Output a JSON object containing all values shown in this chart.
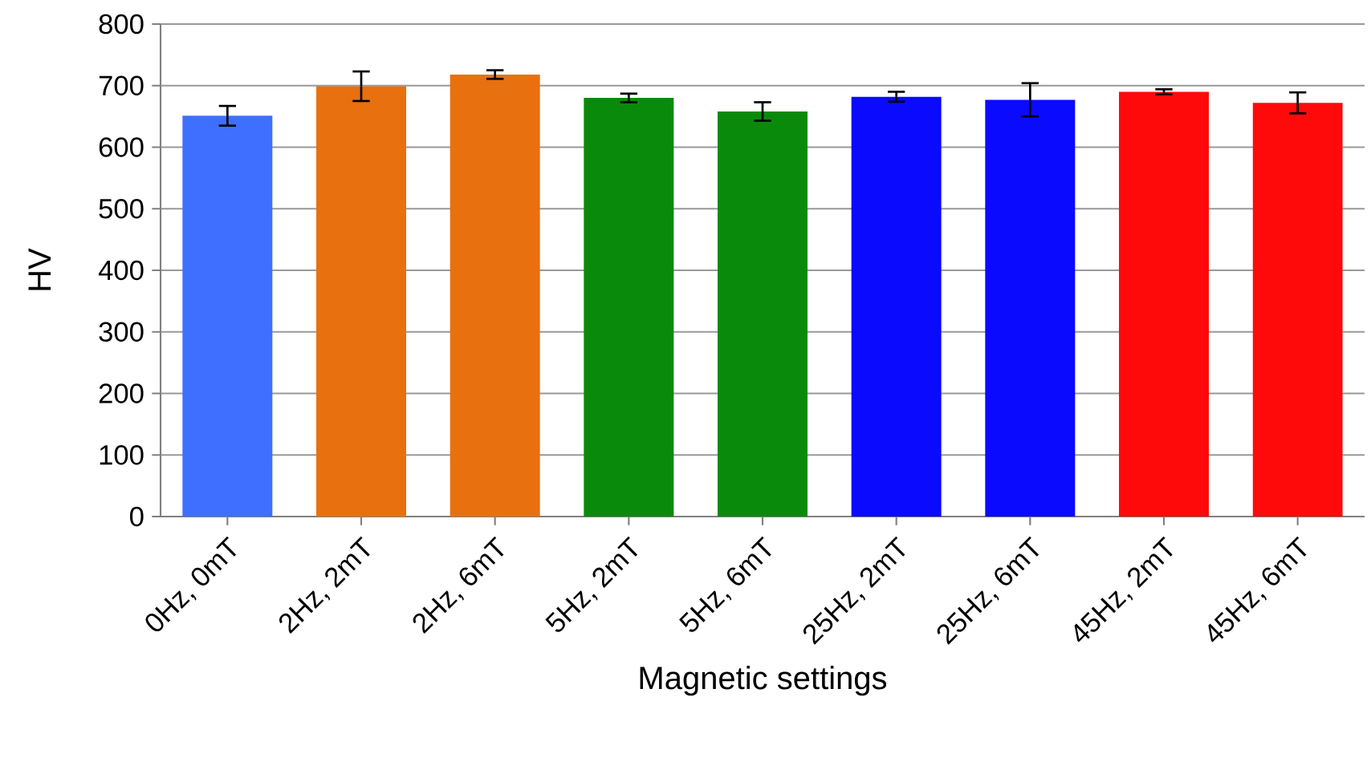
{
  "chart_data": {
    "type": "bar",
    "xlabel": "Magnetic settings",
    "ylabel": "HV",
    "categories": [
      "0Hz, 0mT",
      "2Hz, 2mT",
      "2Hz, 6mT",
      "5Hz, 2mT",
      "5Hz, 6mT",
      "25Hz, 2mT",
      "25Hz, 6mT",
      "45Hz, 2mT",
      "45Hz, 6mT"
    ],
    "values": [
      651,
      699,
      718,
      680,
      658,
      682,
      677,
      690,
      672
    ],
    "errors": [
      16,
      24,
      7,
      7,
      15,
      8,
      27,
      4,
      17
    ],
    "colors": [
      "#3f6fff",
      "#e8700f",
      "#e8700f",
      "#0a8a0a",
      "#0a8a0a",
      "#0a0aff",
      "#0a0aff",
      "#ff0a0a",
      "#ff0a0a"
    ],
    "ylim": [
      0,
      800
    ],
    "yticks": [
      0,
      100,
      200,
      300,
      400,
      500,
      600,
      700,
      800
    ],
    "grid": "y"
  }
}
